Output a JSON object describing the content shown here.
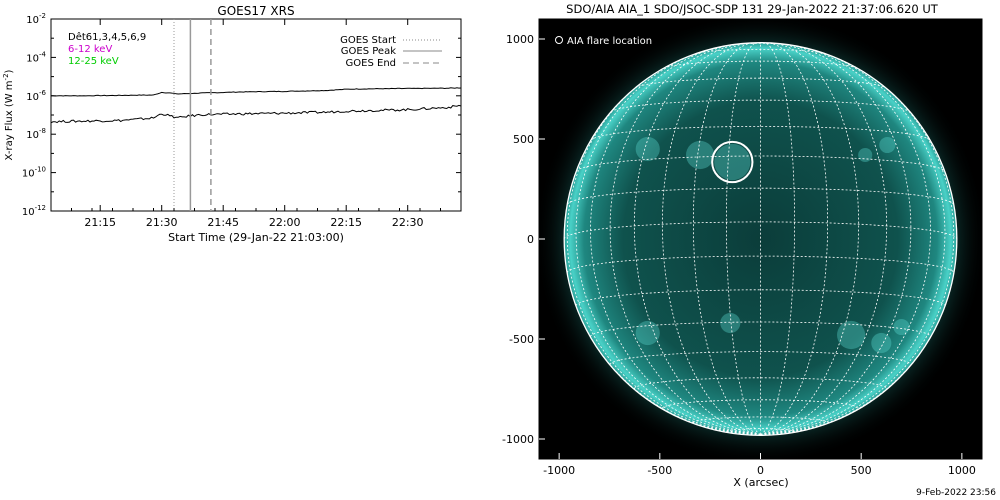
{
  "footer_date": "9-Feb-2022 23:56",
  "chart_data": [
    {
      "type": "line",
      "title": "GOES17 XRS",
      "xlabel": "Start Time (29-Jan-22 21:03:00)",
      "ylabel": "X-ray Flux (W m",
      "ylabel_sup": "-2",
      "ylabel_tail": ")",
      "yscale": "log",
      "ylim": [
        1e-12,
        0.01
      ],
      "xlim": [
        "21:03",
        "22:43"
      ],
      "yticks": [
        {
          "value": 1e-12,
          "base": "10",
          "exp": "-12"
        },
        {
          "value": 1e-10,
          "base": "10",
          "exp": "-10"
        },
        {
          "value": 1e-08,
          "base": "10",
          "exp": "-8"
        },
        {
          "value": 1e-06,
          "base": "10",
          "exp": "-6"
        },
        {
          "value": 0.0001,
          "base": "10",
          "exp": "-4"
        },
        {
          "value": 0.01,
          "base": "10",
          "exp": "-2"
        }
      ],
      "xticks": [
        "21:15",
        "21:30",
        "21:45",
        "22:00",
        "22:15",
        "22:30"
      ],
      "text_legend": [
        {
          "text": "Dêt61,3,4,5,6,9",
          "color": "#000000"
        },
        {
          "text": "6-12 keV",
          "color": "#cc00cc"
        },
        {
          "text": "12-25 keV",
          "color": "#00cc00"
        }
      ],
      "event_legend": [
        {
          "name": "GOES Start",
          "style": "dotted"
        },
        {
          "name": "GOES Peak",
          "style": "solid"
        },
        {
          "name": "GOES End",
          "style": "dashed"
        }
      ],
      "events": {
        "start": "21:33",
        "peak": "21:37",
        "end": "21:42"
      },
      "series": [
        {
          "color": "#000000",
          "x": [
            "21:03",
            "21:10",
            "21:20",
            "21:28",
            "21:30",
            "21:32",
            "21:34",
            "21:36",
            "21:40",
            "21:50",
            "22:00",
            "22:10",
            "22:15",
            "22:20",
            "22:30",
            "22:40",
            "22:43"
          ],
          "y": [
            1e-06,
            1e-06,
            1.05e-06,
            1.1e-06,
            1.5e-06,
            1.4e-06,
            1.25e-06,
            1.3e-06,
            1.4e-06,
            1.6e-06,
            1.7e-06,
            1.9e-06,
            2.2e-06,
            2.3e-06,
            2.4e-06,
            2.5e-06,
            2.6e-06
          ]
        },
        {
          "color": "#000000",
          "x": [
            "21:03",
            "21:10",
            "21:20",
            "21:28",
            "21:30",
            "21:32",
            "21:34",
            "21:36",
            "21:40",
            "21:50",
            "22:00",
            "22:10",
            "22:15",
            "22:20",
            "22:30",
            "22:40",
            "22:43"
          ],
          "y": [
            4.5e-08,
            4.8e-08,
            5.2e-08,
            7e-08,
            1.2e-07,
            9e-08,
            7e-08,
            8.5e-08,
            1.05e-07,
            1.15e-07,
            1.25e-07,
            1.4e-07,
            1.6e-07,
            1.7e-07,
            1.9e-07,
            2.5e-07,
            3.2e-07
          ]
        }
      ]
    },
    {
      "type": "image",
      "title": "SDO/AIA AIA_1 SDO/JSOC-SDP 131 29-Jan-2022 21:37:06.620 UT",
      "xlabel": "X (arcsec)",
      "ylabel": "",
      "xlim": [
        -1100,
        1100
      ],
      "ylim": [
        -1100,
        1100
      ],
      "xticks": [
        "-1000",
        "-500",
        "0",
        "500",
        "1000"
      ],
      "yticks": [
        "1000",
        "500",
        "0",
        "-500",
        "-1000"
      ],
      "xtick_values": [
        -1000,
        -500,
        0,
        500,
        1000
      ],
      "ytick_values": [
        1000,
        500,
        0,
        -500,
        -1000
      ],
      "legend": "AIA flare location",
      "solar_radius": 975,
      "flare": {
        "x": -140,
        "y": 385,
        "r": 100
      },
      "colors": {
        "disk": "#0d4a46",
        "limb": "#3fc6bd",
        "grid": "#ffffff",
        "background": "#000000"
      }
    }
  ]
}
